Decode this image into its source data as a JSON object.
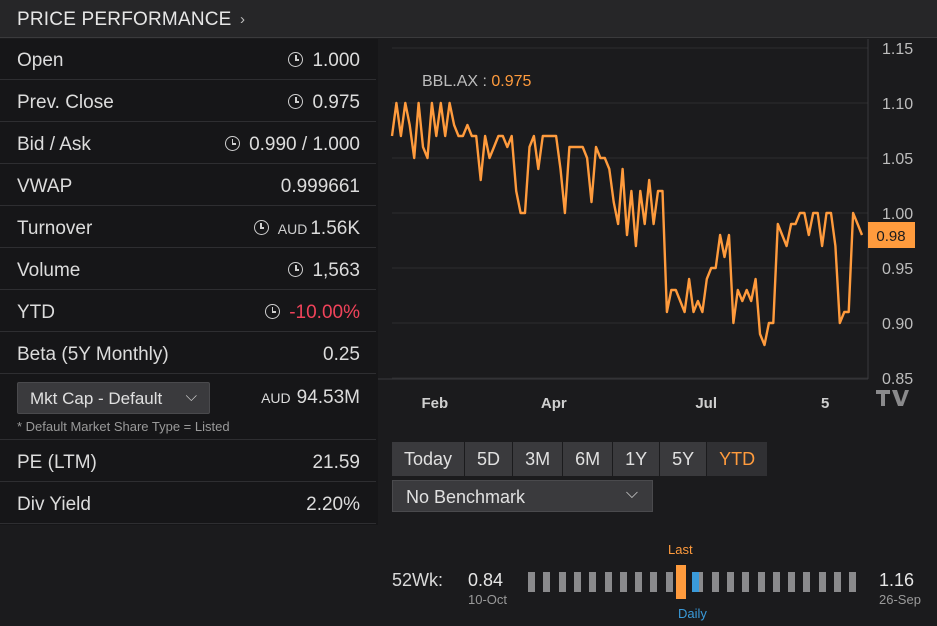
{
  "header": {
    "title": "PRICE PERFORMANCE",
    "chevron": "›"
  },
  "stats": [
    {
      "label": "Open",
      "value": "1.000",
      "clock": true
    },
    {
      "label": "Prev. Close",
      "value": "0.975",
      "clock": true
    },
    {
      "label": "Bid / Ask",
      "value": "0.990 / 1.000",
      "clock": true
    },
    {
      "label": "VWAP",
      "value": "0.999661",
      "clock": false
    },
    {
      "label": "Turnover",
      "currency": "AUD",
      "value": "1.56K",
      "clock": true
    },
    {
      "label": "Volume",
      "value": "1,563",
      "clock": true
    },
    {
      "label": "YTD",
      "value": "-10.00%",
      "clock": true,
      "negative": true
    },
    {
      "label": "Beta (5Y Monthly)",
      "value": "0.25",
      "clock": false
    }
  ],
  "mktcap": {
    "button_label": "Mkt Cap - Default",
    "currency": "AUD",
    "value": "94.53M",
    "note": "* Default Market Share Type = Listed"
  },
  "stats2": [
    {
      "label": "PE (LTM)",
      "value": "21.59"
    },
    {
      "label": "Div Yield",
      "value": "2.20%"
    }
  ],
  "periods": [
    "Today",
    "5D",
    "3M",
    "6M",
    "1Y",
    "5Y",
    "YTD"
  ],
  "active_period": "YTD",
  "benchmark": {
    "label": "No Benchmark"
  },
  "week52": {
    "label": "52Wk:",
    "low": "0.84",
    "low_date": "10-Oct",
    "high": "1.16",
    "high_date": "26-Sep",
    "last_label": "Last",
    "daily_label": "Daily"
  },
  "colors": {
    "accent": "#ff9b3d",
    "negative": "#f0435a",
    "daily": "#3a9ad9"
  },
  "chart_data": {
    "type": "line",
    "legend": {
      "ticker": "BBL.AX",
      "value": "0.975"
    },
    "current_label": "0.98",
    "y_ticks": [
      "1.15",
      "1.10",
      "1.05",
      "1.00",
      "0.95",
      "0.90",
      "0.85"
    ],
    "ylim": [
      0.85,
      1.15
    ],
    "x_ticks": [
      {
        "label": "Feb",
        "t": 0.09
      },
      {
        "label": "Apr",
        "t": 0.34
      },
      {
        "label": "Jul",
        "t": 0.66
      },
      {
        "label": "5",
        "t": 0.91
      }
    ],
    "series": [
      {
        "values": [
          1.07,
          1.1,
          1.07,
          1.1,
          1.08,
          1.05,
          1.1,
          1.06,
          1.05,
          1.1,
          1.07,
          1.1,
          1.07,
          1.1,
          1.08,
          1.07,
          1.07,
          1.08,
          1.07,
          1.07,
          1.03,
          1.07,
          1.05,
          1.06,
          1.07,
          1.07,
          1.06,
          1.07,
          1.02,
          1.0,
          1.0,
          1.06,
          1.07,
          1.04,
          1.07,
          1.07,
          1.07,
          1.07,
          1.04,
          1.0,
          1.06,
          1.06,
          1.06,
          1.06,
          1.05,
          1.01,
          1.06,
          1.05,
          1.05,
          1.04,
          1.01,
          0.99,
          1.04,
          0.98,
          1.02,
          0.97,
          1.02,
          0.99,
          1.03,
          0.99,
          1.02,
          1.02,
          0.91,
          0.93,
          0.93,
          0.92,
          0.91,
          0.94,
          0.91,
          0.92,
          0.91,
          0.94,
          0.95,
          0.95,
          0.98,
          0.96,
          0.98,
          0.9,
          0.93,
          0.92,
          0.93,
          0.92,
          0.94,
          0.89,
          0.88,
          0.9,
          0.9,
          0.99,
          0.98,
          0.97,
          0.99,
          0.99,
          1.0,
          1.0,
          0.98,
          1.0,
          1.0,
          0.97,
          1.0,
          1.0,
          0.97,
          0.9,
          0.91,
          0.91,
          1.0,
          0.99,
          0.98
        ]
      }
    ]
  }
}
